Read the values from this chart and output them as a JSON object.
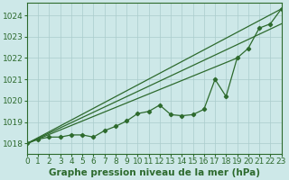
{
  "title": "Graphe pression niveau de la mer (hPa)",
  "bg_color": "#cde8e8",
  "grid_color": "#aacccc",
  "line_color": "#2d6a2d",
  "xlim": [
    0,
    23
  ],
  "ylim": [
    1017.5,
    1024.6
  ],
  "yticks": [
    1018,
    1019,
    1020,
    1021,
    1022,
    1023,
    1024
  ],
  "xticks": [
    0,
    1,
    2,
    3,
    4,
    5,
    6,
    7,
    8,
    9,
    10,
    11,
    12,
    13,
    14,
    15,
    16,
    17,
    18,
    19,
    20,
    21,
    22,
    23
  ],
  "curve_main": [
    1018.0,
    1018.2,
    1018.3,
    1018.3,
    1018.4,
    1018.4,
    1018.3,
    1018.6,
    1018.8,
    1019.05,
    1019.4,
    1019.5,
    1019.8,
    1019.35,
    1019.3,
    1019.35,
    1019.6,
    1021.0,
    1020.2,
    1022.0,
    1022.45,
    1023.4,
    1023.6,
    1024.3
  ],
  "straight_lines": [
    {
      "x": [
        0,
        23
      ],
      "y": [
        1018.0,
        1024.3
      ]
    },
    {
      "x": [
        0,
        23
      ],
      "y": [
        1018.0,
        1023.6
      ]
    },
    {
      "x": [
        0,
        19
      ],
      "y": [
        1018.0,
        1022.0
      ]
    }
  ],
  "tick_fontsize": 6.5,
  "xlabel_fontsize": 7.5,
  "lw": 0.9,
  "marker_size": 2.2
}
